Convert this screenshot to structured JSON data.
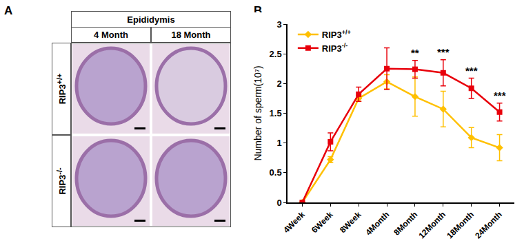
{
  "panel_labels": [
    "A",
    "B"
  ],
  "panel_a": {
    "header": "Epididymis",
    "columns": [
      "4 Month",
      "18 Month"
    ],
    "rows": [
      "RIP3+/+",
      "RIP3-/-"
    ]
  },
  "chart_data": {
    "type": "line",
    "y_label": "Number of sperm(10⁷)",
    "categories": [
      "4Week",
      "6Week",
      "8Week",
      "4Month",
      "8Month",
      "12Month",
      "18Month",
      "24Month"
    ],
    "series": [
      {
        "name": "RIP3+/+",
        "color": "#ffc000",
        "marker": "diamond",
        "values": [
          0,
          0.72,
          1.75,
          2.03,
          1.78,
          1.57,
          1.09,
          0.92
        ],
        "errors": [
          0,
          0.05,
          0.05,
          0.12,
          0.33,
          0.3,
          0.17,
          0.22
        ]
      },
      {
        "name": "RIP3-/-",
        "color": "#e8000b",
        "marker": "square",
        "values": [
          0,
          1.02,
          1.82,
          2.25,
          2.24,
          2.18,
          1.92,
          1.52
        ],
        "errors": [
          0,
          0.15,
          0.12,
          0.35,
          0.15,
          0.22,
          0.17,
          0.15
        ]
      }
    ],
    "ylim": [
      0,
      3
    ],
    "yticks": [
      0,
      0.5,
      1,
      1.5,
      2,
      2.5,
      3
    ],
    "grid": false,
    "legend": "upper left",
    "annotations": [
      {
        "category": "8Month",
        "text": "**"
      },
      {
        "category": "12Month",
        "text": "***"
      },
      {
        "category": "18Month",
        "text": "***"
      },
      {
        "category": "24Month",
        "text": "***"
      }
    ]
  }
}
